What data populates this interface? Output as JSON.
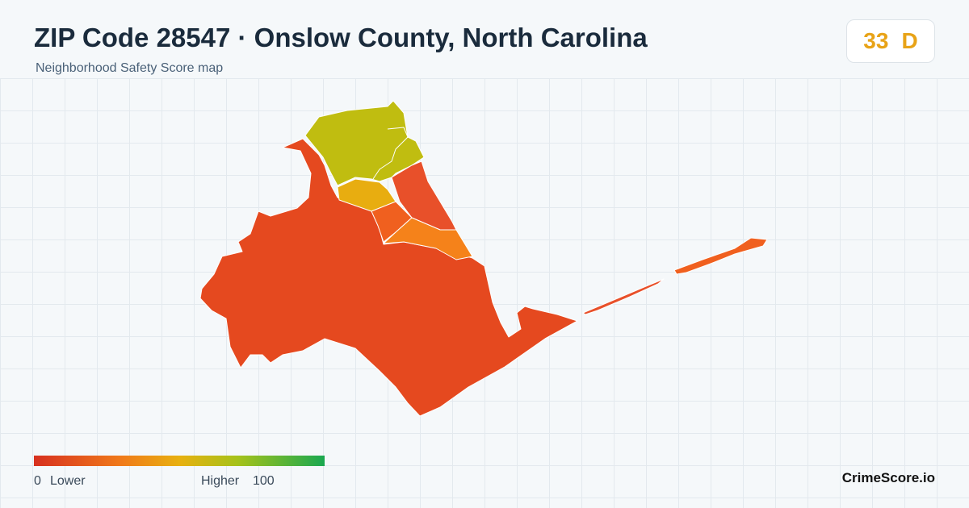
{
  "header": {
    "title": "ZIP Code 28547 · Onslow County, North Carolina",
    "subtitle": "Neighborhood Safety Score map"
  },
  "score": {
    "value": "33",
    "grade": "D"
  },
  "legend": {
    "min": "0",
    "min_label": "Lower",
    "max_label": "Higher",
    "max": "100"
  },
  "brand": "CrimeScore.io"
}
